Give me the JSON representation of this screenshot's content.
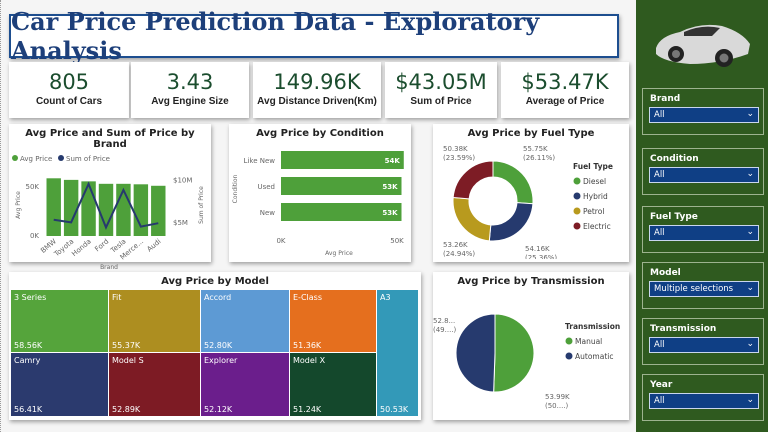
{
  "title": "Car Price Prediction Data - Exploratory Analysis",
  "kpis": [
    {
      "value": "805",
      "label": "Count of Cars"
    },
    {
      "value": "3.43",
      "label": "Avg Engine Size"
    },
    {
      "value": "149.96K",
      "label": "Avg Distance Driven(Km)"
    },
    {
      "value": "$43.05M",
      "label": "Sum of Price"
    },
    {
      "value": "$53.47K",
      "label": "Average of Price"
    }
  ],
  "chart_data": [
    {
      "type": "bar",
      "title": "Avg Price and Sum of Price by Brand",
      "xlabel": "Brand",
      "ylabel": "Avg Price",
      "y2label": "Sum of Price",
      "legend": [
        "Avg Price",
        "Sum of Price"
      ],
      "categories": [
        "BMW",
        "Toyota",
        "Honda",
        "Ford",
        "Tesla",
        "Merce...",
        "Audi"
      ],
      "series": [
        {
          "name": "Avg Price",
          "type": "bar",
          "values": [
            58600,
            57000,
            55500,
            53000,
            53000,
            52500,
            51000
          ],
          "color": "#4ea03a"
        },
        {
          "name": "Sum of Price",
          "type": "line",
          "values": [
            5400000,
            5100000,
            9600000,
            4500000,
            8900000,
            4600000,
            5000000
          ],
          "color": "#263a6e"
        }
      ],
      "yticks": [
        "0K",
        "50K"
      ],
      "y2ticks": [
        "$5M",
        "$10M"
      ],
      "ylim": [
        0,
        65000
      ],
      "y2lim": [
        3500000,
        11000000
      ]
    },
    {
      "type": "bar",
      "orientation": "horizontal",
      "title": "Avg Price by Condition",
      "xlabel": "Avg Price",
      "ylabel": "Condition",
      "categories": [
        "Like New",
        "Used",
        "New"
      ],
      "values": [
        54000,
        53000,
        53000
      ],
      "labels": [
        "54K",
        "53K",
        "53K"
      ],
      "xticks": [
        "0K",
        "50K"
      ],
      "xlim": [
        0,
        50000
      ]
    },
    {
      "type": "pie",
      "donut": true,
      "title": "Avg Price by Fuel Type",
      "legend_title": "Fuel Type",
      "categories": [
        "Diesel",
        "Hybrid",
        "Petrol",
        "Electric"
      ],
      "values": [
        55750,
        54160,
        53260,
        50380
      ],
      "labels": [
        "55.75K\n(26.11%)",
        "54.16K\n(25.36%)",
        "53.26K\n(24.94%)",
        "50.38K\n(23.59%)"
      ],
      "colors": [
        "#4ea03a",
        "#263a6e",
        "#b89a1e",
        "#7d1c25"
      ]
    },
    {
      "type": "treemap",
      "title": "Avg Price by Model",
      "items": [
        {
          "name": "3 Series",
          "value": "58.56K",
          "color": "#55a43b"
        },
        {
          "name": "Camry",
          "value": "56.41K",
          "color": "#2b3a6e"
        },
        {
          "name": "Fit",
          "value": "55.37K",
          "color": "#ad8e20"
        },
        {
          "name": "Model S",
          "value": "52.89K",
          "color": "#7d1b24"
        },
        {
          "name": "Accord",
          "value": "52.80K",
          "color": "#5d9ad4"
        },
        {
          "name": "Explorer",
          "value": "52.12K",
          "color": "#6b1e8c"
        },
        {
          "name": "E-Class",
          "value": "51.36K",
          "color": "#e56f1e"
        },
        {
          "name": "Model X",
          "value": "51.24K",
          "color": "#14482c"
        },
        {
          "name": "A3",
          "value": "50.53K",
          "color": "#3399b8"
        }
      ]
    },
    {
      "type": "pie",
      "title": "Avg Price by Transmission",
      "legend_title": "Transmission",
      "categories": [
        "Manual",
        "Automatic"
      ],
      "values": [
        53990,
        52800
      ],
      "labels": [
        "53.99K\n(50....)",
        "52.8...\n(49....)"
      ],
      "colors": [
        "#4ea03a",
        "#263a6e"
      ]
    }
  ],
  "slicers": [
    {
      "label": "Brand",
      "value": "All"
    },
    {
      "label": "Condition",
      "value": "All"
    },
    {
      "label": "Fuel Type",
      "value": "All"
    },
    {
      "label": "Model",
      "value": "Multiple selections"
    },
    {
      "label": "Transmission",
      "value": "All"
    },
    {
      "label": "Year",
      "value": "All"
    }
  ]
}
